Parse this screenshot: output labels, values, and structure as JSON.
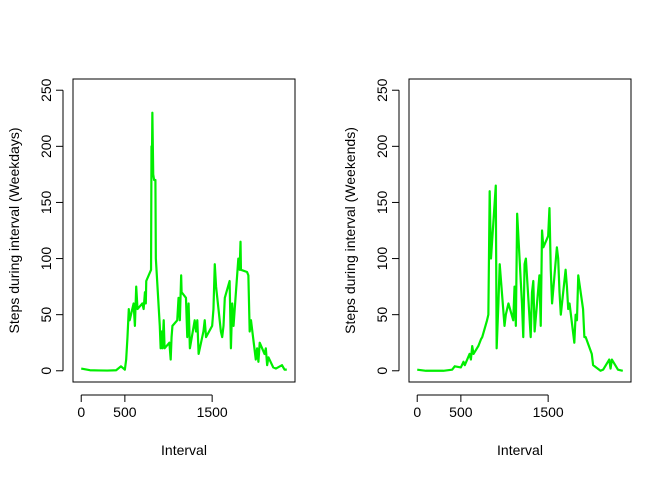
{
  "chart_data": [
    {
      "type": "line",
      "xlabel": "Interval",
      "ylabel": "Steps during interval (Weekdays)",
      "x": [
        0,
        100,
        200,
        300,
        400,
        455,
        500,
        515,
        530,
        545,
        555,
        600,
        615,
        630,
        645,
        700,
        715,
        730,
        740,
        745,
        800,
        805,
        810,
        815,
        825,
        835,
        850,
        855,
        900,
        910,
        920,
        930,
        945,
        955,
        1010,
        1025,
        1035,
        1045,
        1100,
        1115,
        1130,
        1145,
        1150,
        1200,
        1215,
        1230,
        1245,
        1300,
        1315,
        1330,
        1345,
        1400,
        1415,
        1430,
        1500,
        1515,
        1530,
        1545,
        1600,
        1615,
        1630,
        1645,
        1700,
        1715,
        1730,
        1745,
        1800,
        1815,
        1825,
        1830,
        1900,
        1915,
        1930,
        1945,
        2000,
        2015,
        2030,
        2045,
        2100,
        2115,
        2130,
        2145,
        2200,
        2230,
        2300,
        2330,
        2355
      ],
      "values": [
        2,
        0.5,
        0.3,
        0.2,
        0.5,
        4,
        1,
        10,
        30,
        55,
        45,
        60,
        40,
        75,
        55,
        60,
        55,
        70,
        60,
        80,
        90,
        200,
        185,
        230,
        175,
        170,
        170,
        100,
        40,
        20,
        35,
        20,
        45,
        20,
        25,
        10,
        30,
        40,
        45,
        65,
        45,
        85,
        70,
        65,
        30,
        60,
        20,
        45,
        35,
        45,
        15,
        35,
        45,
        30,
        40,
        55,
        95,
        75,
        35,
        30,
        40,
        65,
        80,
        20,
        60,
        40,
        100,
        90,
        115,
        90,
        88,
        85,
        35,
        45,
        10,
        20,
        8,
        25,
        15,
        20,
        5,
        12,
        3,
        2,
        5,
        1,
        1
      ],
      "color": "#00ee00",
      "xlim": [
        -94.2,
        2449.2
      ],
      "ylim": [
        -10,
        260
      ],
      "xticks": [
        0,
        500,
        1500
      ],
      "yticks": [
        0,
        50,
        100,
        150,
        200,
        250
      ]
    },
    {
      "type": "line",
      "xlabel": "Interval",
      "ylabel": "Steps during interval (Weekends)",
      "x": [
        0,
        100,
        200,
        300,
        400,
        430,
        500,
        530,
        545,
        600,
        615,
        630,
        645,
        700,
        715,
        730,
        745,
        800,
        815,
        830,
        845,
        900,
        910,
        930,
        945,
        1000,
        1015,
        1045,
        1100,
        1115,
        1130,
        1145,
        1200,
        1215,
        1230,
        1245,
        1300,
        1315,
        1330,
        1345,
        1400,
        1415,
        1430,
        1445,
        1500,
        1515,
        1530,
        1545,
        1600,
        1615,
        1630,
        1645,
        1700,
        1715,
        1730,
        1745,
        1800,
        1815,
        1830,
        1845,
        1900,
        1915,
        1930,
        2000,
        2015,
        2100,
        2130,
        2200,
        2215,
        2230,
        2300,
        2355
      ],
      "values": [
        1,
        0,
        0,
        0,
        1,
        4,
        3,
        8,
        5,
        15,
        10,
        22,
        15,
        22,
        25,
        28,
        30,
        45,
        50,
        160,
        100,
        165,
        20,
        60,
        95,
        40,
        50,
        60,
        45,
        75,
        40,
        140,
        60,
        30,
        95,
        100,
        30,
        70,
        80,
        35,
        85,
        40,
        125,
        110,
        120,
        145,
        90,
        60,
        110,
        100,
        70,
        50,
        90,
        75,
        55,
        60,
        25,
        50,
        45,
        85,
        55,
        30,
        30,
        15,
        5,
        0,
        1,
        10,
        2,
        10,
        1,
        0
      ],
      "color": "#00ee00",
      "xlim": [
        -94.2,
        2449.2
      ],
      "ylim": [
        -10,
        260
      ],
      "xticks": [
        0,
        500,
        1500
      ],
      "yticks": [
        0,
        50,
        100,
        150,
        200,
        250
      ]
    }
  ]
}
